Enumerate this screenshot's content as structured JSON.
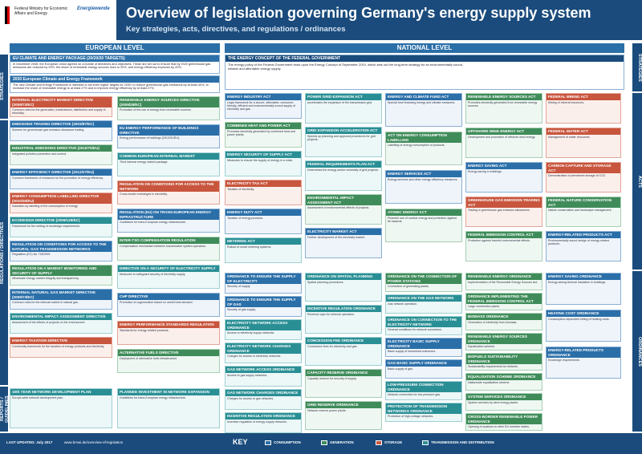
{
  "header": {
    "logo1_text": "Federal Ministry for Economic Affairs and Energy",
    "logo2_text": "Energiewende",
    "logo2_sub": "",
    "title": "Overview of legislation governing Germany's energy supply system",
    "subtitle": "Key strategies, acts, directives, and regulations / ordinances"
  },
  "levels": {
    "eu": "EUROPEAN LEVEL",
    "national": "NATIONAL LEVEL"
  },
  "side_labels": {
    "left": [
      "STRATEGIES",
      "REGULATIONS / DIRECTIVES",
      "REPORTS / GUIDELINES"
    ],
    "right": [
      "STRATEGIES",
      "ACTS",
      "ORDINANCES"
    ]
  },
  "eu_main": {
    "heading": "EU CLIMATE AND ENERGY PACKAGE (20/20/20 TARGETS)",
    "body": "In December 2008, the European Union agreed on a bundle of directives and objectives. These are set out to ensure that by 2020 greenhouse gas emissions are reduced by 20%, the share of renewable energy sources rises to 20%, and energy efficiency improves by 20%."
  },
  "eu_2030": {
    "heading": "2030 European Climate and Energy Framework",
    "body": "The new Climate and Energy Framework is intended to set even higher targets for 2030: to reduce greenhouse gas emissions by at least 40%, to increase the share of renewable energy to at least 27% and to improve energy efficiency by at least 27%."
  },
  "nat_main": {
    "heading": "THE ENERGY CONCEPT OF THE FEDERAL GOVERNMENT",
    "body": "The energy policy of the Federal Government rests upon the Energy Concept of September 2010, which sets out the long-term strategy for an environmentally sound, reliable and affordable energy supply."
  },
  "eu_boxes_left": [
    {
      "h": "INTERNAL ELECTRICITY MARKET DIRECTIVE (2009/72/EC)",
      "b": "Common rules for the generation, transmission, distribution and supply of electricity."
    },
    {
      "h": "EMISSIONS TRADING DIRECTIVE (2003/87/EC)",
      "b": "Scheme for greenhouse gas emission allowance trading."
    },
    {
      "h": "INDUSTRIAL EMISSIONS DIRECTIVE (2010/75/EU)",
      "b": "Integrated pollution prevention and control."
    },
    {
      "h": "ENERGY EFFICIENCY DIRECTIVE (2012/27/EU)",
      "b": "Common framework of measures for the promotion of energy efficiency."
    },
    {
      "h": "ENERGY CONSUMPTION LABELLING DIRECTIVE (2010/30/EU)",
      "b": "Indication by labelling of the consumption of energy."
    },
    {
      "h": "ECODESIGN DIRECTIVE (2009/125/EC)",
      "b": "Framework for the setting of ecodesign requirements."
    },
    {
      "h": "REGULATION ON CONDITIONS FOR ACCESS TO THE NATURAL GAS TRANSMISSION NETWORKS",
      "b": "Regulation (EC) No 715/2009."
    },
    {
      "h": "REGULATION ON A MARKET MONITORING AND SECURITY OF SUPPLY",
      "b": "Wholesale energy market integrity and transparency."
    },
    {
      "h": "INTERNAL NATURAL GAS MARKET DIRECTIVE (2009/73/EC)",
      "b": "Common rules for the internal market in natural gas."
    },
    {
      "h": "ENVIRONMENTAL IMPACT ASSESSMENT DIRECTIVE",
      "b": "Assessment of the effects of projects on the environment."
    },
    {
      "h": "ENERGY TAXATION DIRECTIVE",
      "b": "Community framework for the taxation of energy products and electricity."
    }
  ],
  "eu_boxes_right": [
    {
      "h": "RENEWABLE ENERGY SOURCES DIRECTIVE (2009/28/EC)",
      "b": "Promotion of the use of energy from renewable sources."
    },
    {
      "h": "EU ENERGY PERFORMANCE OF BUILDINGS DIRECTIVE",
      "b": "Energy performance of buildings (2010/31/EU)."
    },
    {
      "h": "COMMON EUROPEAN INTERNAL MARKET",
      "b": "Third internal energy market package."
    },
    {
      "h": "REGULATION ON CONDITIONS FOR ACCESS TO THE NETWORK",
      "b": "Cross-border exchanges in electricity."
    },
    {
      "h": "REGULATION (EU) ON TRANS-EUROPEAN ENERGY INFRASTRUCTURE",
      "b": "Guidelines for trans-European energy infrastructure."
    },
    {
      "h": "INTER-TSO COMPENSATION REGULATION",
      "b": "Compensation mechanism between transmission system operators."
    },
    {
      "h": "DIRECTIVE ON A SECURITY OF ELECTRICITY SUPPLY",
      "b": "Measures to safeguard security of electricity supply."
    },
    {
      "h": "CHP DIRECTIVE",
      "b": "Promotion of cogeneration based on useful heat demand."
    },
    {
      "h": "ENERGY PERFORMANCE STANDARDS REGULATION",
      "b": "Standards for energy-related products."
    },
    {
      "h": "ALTERNATIVE FUELS DIRECTIVE",
      "b": "Deployment of alternative fuels infrastructure."
    }
  ],
  "nat_col1": [
    {
      "h": "ENERGY INDUSTRY ACT",
      "b": "Legal framework for a secure, affordable, consumer-friendly, efficient and environmentally sound supply of electricity and gas."
    },
    {
      "h": "COMBINED HEAT AND POWER ACT",
      "b": "Promotes electricity generated by combined heat and power plants."
    },
    {
      "h": "ENERGY SECURITY OF SUPPLY ACT",
      "b": "Measures to ensure the supply of energy in a crisis."
    },
    {
      "h": "ELECTRICITY TAX ACT",
      "b": "Taxation of electricity."
    },
    {
      "h": "ENERGY DUTY ACT",
      "b": "Taxation of energy products."
    },
    {
      "h": "METERING ACT",
      "b": "Rollout of smart metering systems."
    }
  ],
  "nat_col2": [
    {
      "h": "POWER GRID EXPANSION ACT",
      "b": "Accelerates the expansion of the transmission grid."
    },
    {
      "h": "GRID EXPANSION ACCELERATION ACT",
      "b": "Speeds up planning and approval procedures for grid projects."
    },
    {
      "h": "FEDERAL REQUIREMENTS PLAN ACT",
      "b": "Determines the energy-sector necessity of grid projects."
    },
    {
      "h": "ENVIRONMENTAL IMPACT ASSESSMENT ACT",
      "b": "Assessment of environmental effects of projects."
    },
    {
      "h": "ELECTRICITY MARKET ACT",
      "b": "Further development of the electricity market."
    }
  ],
  "nat_col3": [
    {
      "h": "ENERGY AND CLIMATE FUND ACT",
      "b": "Special fund financing energy and climate measures."
    },
    {
      "h": "ACT ON ENERGY CONSUMPTION LABELLING",
      "b": "Labelling of energy consumption of products."
    },
    {
      "h": "ENERGY SERVICES ACT",
      "b": "Energy services and other energy efficiency measures."
    },
    {
      "h": "ATOMIC ENERGY ACT",
      "b": "Peaceful use of nuclear energy and protection against its hazards."
    }
  ],
  "nat_col4": [
    {
      "h": "RENEWABLE ENERGY SOURCES ACT",
      "b": "Promotes electricity generated from renewable energy sources."
    },
    {
      "h": "OFFSHORE WIND ENERGY ACT",
      "b": "Development and promotion of offshore wind energy."
    },
    {
      "h": "ENERGY SAVING ACT",
      "b": "Energy saving in buildings."
    },
    {
      "h": "GREENHOUSE GAS EMISSION TRADING ACT",
      "b": "Trading in greenhouse gas emission allowances."
    },
    {
      "h": "FEDERAL IMMISSION CONTROL ACT",
      "b": "Protection against harmful environmental effects."
    }
  ],
  "nat_col5": [
    {
      "h": "FEDERAL MINING ACT",
      "b": "Mining of mineral resources."
    },
    {
      "h": "FEDERAL WATER ACT",
      "b": "Management of water resources."
    },
    {
      "h": "CARBON CAPTURE AND STORAGE ACT",
      "b": "Demonstration of permanent storage of CO2."
    },
    {
      "h": "FEDERAL NATURE CONSERVATION ACT",
      "b": "Nature conservation and landscape management."
    },
    {
      "h": "ENERGY-RELATED PRODUCTS ACT",
      "b": "Environmentally sound design of energy-related products."
    }
  ],
  "ordinances_col1": [
    {
      "h": "ORDINANCE TO ENSURE THE SUPPLY OF ELECTRICITY",
      "b": "Security of supply."
    },
    {
      "h": "ORDINANCE TO ENSURE THE SUPPLY OF GAS",
      "b": "Security of gas supply."
    },
    {
      "h": "ELECTRICITY NETWORK ACCESS ORDINANCE",
      "b": "Access to electricity supply networks."
    },
    {
      "h": "ELECTRICITY NETWORK CHARGES ORDINANCE",
      "b": "Charges for access to electricity networks."
    },
    {
      "h": "GAS NETWORK ACCESS ORDINANCE",
      "b": "Access to gas supply networks."
    },
    {
      "h": "GAS NETWORK CHARGES ORDINANCE",
      "b": "Charges for access to gas networks."
    },
    {
      "h": "INCENTIVE REGULATION ORDINANCE",
      "b": "Incentive regulation of energy supply networks."
    }
  ],
  "ordinances_col2": [
    {
      "h": "ORDINANCE ON SPATIAL PLANNING",
      "b": "Spatial planning procedures."
    },
    {
      "h": "INCENTIVE REGULATION ORDINANCE",
      "b": "Revenue caps for network operators."
    },
    {
      "h": "CONCESSION FEE ORDINANCE",
      "b": "Concession fees for electricity and gas."
    },
    {
      "h": "CAPACITY RESERVE ORDINANCE",
      "b": "Capacity reserve for security of supply."
    },
    {
      "h": "GRID RESERVE ORDINANCE",
      "b": "Network reserve power plants."
    }
  ],
  "ordinances_col3": [
    {
      "h": "ORDINANCE ON THE CONNECTION OF POWER STATIONS",
      "b": "Connection of generating plants."
    },
    {
      "h": "ORDINANCE ON THE GAS NETWORK",
      "b": "Gas network operation."
    },
    {
      "h": "ORDINANCE ON CONNECTION TO THE ELECTRICITY NETWORK",
      "b": "General conditions for network connection."
    },
    {
      "h": "ELECTRICITY BASIC SUPPLY ORDINANCE",
      "b": "Basic supply of household customers."
    },
    {
      "h": "GAS BASIC SUPPLY ORDINANCE",
      "b": "Basic supply of gas."
    },
    {
      "h": "LOW-PRESSURE CONNECTION ORDINANCE",
      "b": "Network connection for low-pressure gas."
    },
    {
      "h": "PROTECTION OF TRANSMISSION NETWORKS ORDINANCE",
      "b": "Protection of high-voltage networks."
    }
  ],
  "ordinances_col4": [
    {
      "h": "RENEWABLE ENERGY ORDINANCE",
      "b": "Implementation of the Renewable Energy Sources Act."
    },
    {
      "h": "ORDINANCE IMPLEMENTING THE FEDERAL IMMISSION CONTROL ACT",
      "b": "Large combustion plants."
    },
    {
      "h": "BIOMASS ORDINANCE",
      "b": "Generation of electricity from biomass."
    },
    {
      "h": "RENEWABLE ENERGY SOURCES ORDINANCE",
      "b": "Equalisation scheme."
    },
    {
      "h": "BIOFUELS SUSTAINABILITY ORDINANCE",
      "b": "Sustainability requirements for biofuels."
    },
    {
      "h": "EQUALISATION SCHEME ORDINANCE",
      "b": "Nationwide equalisation scheme."
    },
    {
      "h": "SYSTEM SERVICES ORDINANCE",
      "b": "System services by wind energy plants."
    },
    {
      "h": "CROSS-BORDER RENEWABLE POWER ORDINANCE",
      "b": "Opening of auctions to other EU member states."
    }
  ],
  "ordinances_col5": [
    {
      "h": "ENERGY SAVING ORDINANCE",
      "b": "Energy-saving thermal insulation in buildings."
    },
    {
      "h": "HEATING COST ORDINANCE",
      "b": "Consumption-dependent billing of heating costs."
    },
    {
      "h": "ENERGY-RELATED PRODUCTS ORDINANCE",
      "b": "Ecodesign requirements."
    }
  ],
  "reports": [
    {
      "h": "10th YEAR NETWORK DEVELOPMENT PLAN",
      "b": "Europe-wide network development plan."
    },
    {
      "h": "PLANNED INVESTMENT IN NETWORK EXPANSION",
      "b": "Guidelines for trans-European energy infrastructure."
    }
  ],
  "footer": {
    "updated": "LAST UPDATED: July 2017",
    "url": "www.bmwi.de/overview-of-legislation",
    "key": "KEY",
    "legend": [
      "CONSUMPTION",
      "GENERATION",
      "STORAGE",
      "TRANSMISSION AND DISTRIBUTION"
    ]
  },
  "colors": {
    "primary": "#1a4b7c",
    "accent": "#2b6fa8",
    "consumption": "#2b6fa8",
    "generation": "#3f8c5a",
    "storage": "#c8553d",
    "transmission": "#2a8f95"
  }
}
